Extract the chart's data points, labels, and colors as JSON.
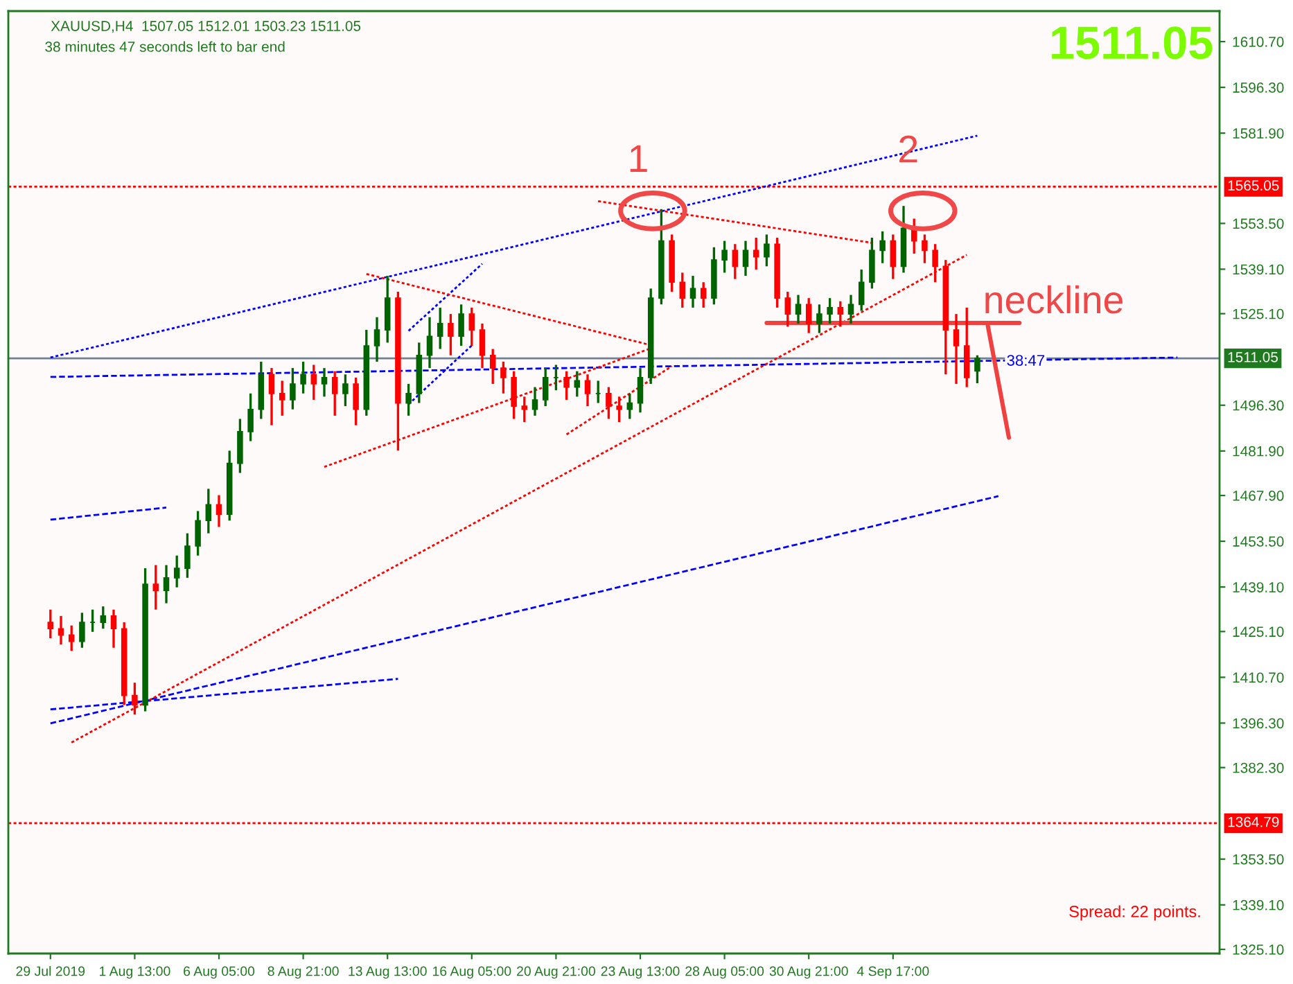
{
  "chart_data": {
    "type": "candlestick",
    "title": "XAUUSD,H4  1507.05 1512.01 1503.23 1511.05",
    "subtitle": "38 minutes 47 seconds left to bar end",
    "categories": [
      "29 Jul 2019",
      null,
      null,
      null,
      null,
      null,
      null,
      null,
      "1 Aug 13:00",
      null,
      null,
      null,
      null,
      null,
      null,
      null,
      "6 Aug 05:00",
      null,
      null,
      null,
      null,
      null,
      null,
      null,
      "8 Aug 21:00",
      null,
      null,
      null,
      null,
      null,
      null,
      null,
      "13 Aug 13:00",
      null,
      null,
      null,
      null,
      null,
      null,
      null,
      "16 Aug 05:00",
      null,
      null,
      null,
      null,
      null,
      null,
      null,
      "20 Aug 21:00",
      null,
      null,
      null,
      null,
      null,
      null,
      null,
      "23 Aug 13:00",
      null,
      null,
      null,
      null,
      null,
      null,
      null,
      "28 Aug 05:00",
      null,
      null,
      null,
      null,
      null,
      null,
      null,
      "30 Aug 21:00",
      null,
      null,
      null,
      null,
      null,
      null,
      null,
      "4 Sep 17:00",
      null,
      null,
      null,
      null,
      null,
      null,
      null,
      null,
      null,
      null,
      null,
      null,
      null,
      null,
      null,
      null,
      null,
      null,
      null,
      null,
      null,
      null,
      null,
      null,
      null,
      null,
      null
    ],
    "ohlc": [
      [
        1428,
        1432,
        1423,
        1426
      ],
      [
        1426,
        1430,
        1421,
        1424
      ],
      [
        1424,
        1427,
        1419,
        1422
      ],
      [
        1422,
        1431,
        1420,
        1428
      ],
      [
        1428,
        1432,
        1425,
        1428
      ],
      [
        1428,
        1433,
        1426,
        1430
      ],
      [
        1430,
        1432,
        1420,
        1426
      ],
      [
        1426,
        1428,
        1402,
        1405
      ],
      [
        1405,
        1409,
        1399,
        1402
      ],
      [
        1402,
        1445,
        1400,
        1440
      ],
      [
        1440,
        1446,
        1432,
        1438
      ],
      [
        1438,
        1446,
        1434,
        1442
      ],
      [
        1442,
        1449,
        1439,
        1445
      ],
      [
        1445,
        1456,
        1442,
        1452
      ],
      [
        1452,
        1463,
        1449,
        1460
      ],
      [
        1460,
        1470,
        1456,
        1465
      ],
      [
        1465,
        1468,
        1458,
        1462
      ],
      [
        1462,
        1482,
        1460,
        1478
      ],
      [
        1478,
        1492,
        1475,
        1488
      ],
      [
        1488,
        1500,
        1485,
        1495
      ],
      [
        1495,
        1510,
        1492,
        1506
      ],
      [
        1506,
        1508,
        1490,
        1500
      ],
      [
        1500,
        1504,
        1493,
        1498
      ],
      [
        1498,
        1508,
        1495,
        1503
      ],
      [
        1503,
        1510,
        1500,
        1506
      ],
      [
        1506,
        1509,
        1498,
        1503
      ],
      [
        1503,
        1508,
        1499,
        1505
      ],
      [
        1505,
        1507,
        1493,
        1500
      ],
      [
        1500,
        1506,
        1496,
        1503
      ],
      [
        1503,
        1505,
        1490,
        1495
      ],
      [
        1495,
        1520,
        1493,
        1515
      ],
      [
        1515,
        1524,
        1510,
        1520
      ],
      [
        1520,
        1537,
        1516,
        1530
      ],
      [
        1530,
        1532,
        1482,
        1497
      ],
      [
        1497,
        1503,
        1493,
        1500
      ],
      [
        1500,
        1516,
        1497,
        1512
      ],
      [
        1512,
        1524,
        1508,
        1518
      ],
      [
        1518,
        1527,
        1514,
        1522
      ],
      [
        1522,
        1525,
        1512,
        1518
      ],
      [
        1518,
        1528,
        1515,
        1525
      ],
      [
        1525,
        1527,
        1515,
        1520
      ],
      [
        1520,
        1522,
        1508,
        1512
      ],
      [
        1512,
        1514,
        1503,
        1508
      ],
      [
        1508,
        1510,
        1500,
        1505
      ],
      [
        1505,
        1507,
        1492,
        1496
      ],
      [
        1496,
        1499,
        1491,
        1495
      ],
      [
        1495,
        1502,
        1493,
        1498
      ],
      [
        1498,
        1508,
        1496,
        1505
      ],
      [
        1505,
        1509,
        1501,
        1505
      ],
      [
        1505,
        1507,
        1498,
        1502
      ],
      [
        1502,
        1507,
        1499,
        1504
      ],
      [
        1504,
        1506,
        1496,
        1500
      ],
      [
        1500,
        1504,
        1497,
        1500
      ],
      [
        1500,
        1502,
        1492,
        1496
      ],
      [
        1496,
        1499,
        1491,
        1495
      ],
      [
        1495,
        1500,
        1492,
        1497
      ],
      [
        1497,
        1508,
        1494,
        1505
      ],
      [
        1505,
        1533,
        1503,
        1530
      ],
      [
        1530,
        1558,
        1528,
        1548
      ],
      [
        1548,
        1550,
        1532,
        1535
      ],
      [
        1535,
        1538,
        1527,
        1530
      ],
      [
        1530,
        1537,
        1527,
        1533
      ],
      [
        1533,
        1535,
        1527,
        1530
      ],
      [
        1530,
        1546,
        1528,
        1542
      ],
      [
        1542,
        1548,
        1538,
        1545
      ],
      [
        1545,
        1547,
        1536,
        1540
      ],
      [
        1540,
        1548,
        1537,
        1545
      ],
      [
        1545,
        1549,
        1539,
        1543
      ],
      [
        1543,
        1550,
        1540,
        1547
      ],
      [
        1547,
        1549,
        1527,
        1530
      ],
      [
        1530,
        1532,
        1521,
        1525
      ],
      [
        1525,
        1531,
        1522,
        1528
      ],
      [
        1528,
        1530,
        1519,
        1522
      ],
      [
        1522,
        1528,
        1519,
        1525
      ],
      [
        1525,
        1530,
        1522,
        1527
      ],
      [
        1527,
        1529,
        1521,
        1525
      ],
      [
        1525,
        1531,
        1522,
        1528
      ],
      [
        1528,
        1539,
        1526,
        1535
      ],
      [
        1535,
        1549,
        1533,
        1545
      ],
      [
        1545,
        1551,
        1541,
        1548
      ],
      [
        1548,
        1550,
        1536,
        1540
      ],
      [
        1540,
        1559,
        1538,
        1552
      ],
      [
        1552,
        1555,
        1544,
        1548
      ],
      [
        1548,
        1550,
        1541,
        1545
      ],
      [
        1545,
        1547,
        1535,
        1540
      ],
      [
        1540,
        1542,
        1506,
        1520
      ],
      [
        1520,
        1525,
        1503,
        1515
      ],
      [
        1515,
        1527,
        1502,
        1505
      ],
      [
        1507.05,
        1512.01,
        1503.23,
        1511.05
      ],
      null,
      null,
      null,
      null,
      null,
      null,
      null,
      null,
      null,
      null,
      null,
      null,
      null,
      null,
      null,
      null,
      null,
      null,
      null
    ],
    "colors": [
      "#ff0000",
      "#ff0000",
      "#ff0000",
      "#006400",
      "#006400",
      "#006400",
      "#ff0000",
      "#ff0000",
      "#ff0000",
      "#006400",
      "#ff0000",
      "#006400",
      "#006400",
      "#006400",
      "#006400",
      "#006400",
      "#ff0000",
      "#006400",
      "#006400",
      "#006400",
      "#006400",
      "#ff0000",
      "#ff0000",
      "#006400",
      "#006400",
      "#ff0000",
      "#006400",
      "#ff0000",
      "#006400",
      "#ff0000",
      "#006400",
      "#006400",
      "#006400",
      "#ff0000",
      "#006400",
      "#006400",
      "#006400",
      "#006400",
      "#ff0000",
      "#006400",
      "#ff0000",
      "#ff0000",
      "#ff0000",
      "#ff0000",
      "#ff0000",
      "#ff0000",
      "#006400",
      "#006400",
      "#006400",
      "#ff0000",
      "#006400",
      "#ff0000",
      "#006400",
      "#ff0000",
      "#ff0000",
      "#006400",
      "#006400",
      "#006400",
      "#006400",
      "#ff0000",
      "#ff0000",
      "#006400",
      "#ff0000",
      "#006400",
      "#006400",
      "#ff0000",
      "#006400",
      "#ff0000",
      "#006400",
      "#ff0000",
      "#ff0000",
      "#006400",
      "#ff0000",
      "#006400",
      "#006400",
      "#ff0000",
      "#006400",
      "#006400",
      "#006400",
      "#006400",
      "#ff0000",
      "#006400",
      "#ff0000",
      "#ff0000",
      "#ff0000",
      "#ff0000",
      "#ff0000",
      "#ff0000",
      "#006400",
      null,
      null,
      null,
      null,
      null,
      null,
      null,
      null,
      null,
      null,
      null,
      null,
      null,
      null,
      null,
      null,
      null,
      null,
      null
    ],
    "ylim": [
      1323.8,
      1620.3
    ],
    "yticks": [
      {
        "value": 1610.7,
        "label": "1610.70"
      },
      {
        "value": 1596.3,
        "label": "1596.30"
      },
      {
        "value": 1581.9,
        "label": "1581.90"
      },
      {
        "value": 1553.5,
        "label": "1553.50"
      },
      {
        "value": 1539.1,
        "label": "1539.10"
      },
      {
        "value": 1525.1,
        "label": "1525.10"
      },
      {
        "value": 1496.3,
        "label": "1496.30"
      },
      {
        "value": 1481.9,
        "label": "1481.90"
      },
      {
        "value": 1467.9,
        "label": "1467.90"
      },
      {
        "value": 1453.5,
        "label": "1453.50"
      },
      {
        "value": 1439.1,
        "label": "1439.10"
      },
      {
        "value": 1425.1,
        "label": "1425.10"
      },
      {
        "value": 1410.7,
        "label": "1410.70"
      },
      {
        "value": 1396.3,
        "label": "1396.30"
      },
      {
        "value": 1382.3,
        "label": "1382.30"
      },
      {
        "value": 1353.5,
        "label": "1353.50"
      },
      {
        "value": 1339.1,
        "label": "1339.10"
      },
      {
        "value": 1325.1,
        "label": "1325.10"
      }
    ],
    "series": [
      {
        "type": "line",
        "color": "#0000ff",
        "line_style": "dotted",
        "values": [
          1511.3,
          null,
          null,
          null,
          null,
          null,
          null,
          null,
          null,
          null,
          null,
          null,
          null,
          null,
          null,
          null,
          null,
          null,
          null,
          null,
          null,
          null,
          null,
          null,
          null,
          null,
          null,
          null,
          null,
          null,
          null,
          null,
          null,
          null,
          null,
          null,
          null,
          null,
          null,
          null,
          null,
          null,
          null,
          null,
          null,
          null,
          null,
          null,
          null,
          null,
          null,
          null,
          null,
          null,
          null,
          null,
          null,
          null,
          null,
          null,
          null,
          null,
          null,
          null,
          null,
          null,
          null,
          null,
          null,
          null,
          null,
          null,
          null,
          null,
          null,
          null,
          null,
          null,
          null,
          null,
          null,
          null,
          null,
          null,
          null,
          null,
          null,
          null,
          1581.1,
          null,
          null,
          null,
          null,
          null,
          null,
          null,
          null,
          null,
          null,
          null,
          null,
          null,
          null,
          null,
          null,
          null,
          null,
          null
        ]
      },
      {
        "type": "line",
        "color": "#0000ff",
        "line_style": "dashed",
        "values": [
          1400.6,
          null,
          null,
          null,
          null,
          null,
          null,
          null,
          null,
          null,
          null,
          null,
          null,
          null,
          null,
          null,
          null,
          null,
          null,
          null,
          null,
          null,
          null,
          null,
          null,
          null,
          null,
          null,
          null,
          null,
          null,
          null,
          null,
          1410.2,
          null,
          null,
          null,
          null,
          null,
          null,
          null,
          null,
          null,
          null,
          null,
          null,
          null,
          null,
          null,
          null,
          null,
          null,
          null,
          null,
          null,
          null,
          null,
          null,
          null,
          null,
          null,
          null,
          null,
          null,
          null,
          null,
          null,
          null,
          null,
          null,
          null,
          null,
          null,
          null,
          null,
          null,
          null,
          null,
          null,
          null,
          null,
          null,
          null,
          null,
          null,
          null,
          null,
          null,
          null,
          null,
          null,
          null,
          null,
          null,
          null,
          null,
          null,
          null,
          null,
          null,
          null,
          null,
          null,
          null,
          null,
          null,
          null,
          null
        ]
      },
      {
        "type": "line",
        "color": "#0000ff",
        "line_style": "dashed",
        "values": [
          1396.2,
          null,
          null,
          null,
          null,
          null,
          null,
          null,
          null,
          null,
          null,
          null,
          null,
          null,
          null,
          null,
          null,
          null,
          null,
          null,
          null,
          null,
          null,
          null,
          null,
          null,
          null,
          null,
          null,
          null,
          null,
          null,
          null,
          null,
          null,
          null,
          null,
          null,
          null,
          null,
          null,
          null,
          null,
          null,
          null,
          null,
          null,
          null,
          null,
          null,
          null,
          null,
          null,
          null,
          null,
          null,
          null,
          null,
          null,
          null,
          null,
          null,
          null,
          null,
          null,
          null,
          null,
          null,
          null,
          null,
          null,
          null,
          null,
          null,
          null,
          null,
          null,
          null,
          null,
          null,
          null,
          null,
          null,
          null,
          null,
          null,
          null,
          null,
          null,
          null,
          1467.7,
          null,
          null,
          null,
          null,
          null,
          null,
          null,
          null,
          null,
          null,
          null,
          null,
          null,
          null,
          null,
          null,
          null
        ]
      },
      {
        "type": "line",
        "color": "#0000ff",
        "line_style": "dashed",
        "values": [
          1505.2,
          null,
          null,
          null,
          null,
          null,
          null,
          null,
          null,
          null,
          null,
          null,
          null,
          null,
          null,
          null,
          null,
          null,
          null,
          null,
          null,
          null,
          null,
          null,
          null,
          null,
          null,
          null,
          null,
          null,
          null,
          null,
          null,
          null,
          null,
          null,
          null,
          null,
          null,
          null,
          null,
          null,
          null,
          null,
          null,
          null,
          null,
          null,
          null,
          null,
          null,
          null,
          null,
          null,
          null,
          null,
          null,
          null,
          null,
          null,
          null,
          null,
          null,
          null,
          null,
          null,
          null,
          null,
          null,
          null,
          null,
          null,
          null,
          null,
          null,
          null,
          null,
          null,
          null,
          null,
          null,
          null,
          null,
          null,
          null,
          null,
          null,
          null,
          null,
          null,
          null,
          null,
          null,
          null,
          null,
          null,
          null,
          null,
          null,
          null,
          null,
          null,
          null,
          null,
          null,
          null,
          null,
          1511.3
        ]
      },
      {
        "type": "line",
        "color": "#0000ff",
        "line_style": "dashed",
        "values": [
          1460.3,
          null,
          null,
          null,
          null,
          null,
          null,
          null,
          null,
          null,
          null,
          1464.1,
          null,
          null,
          null,
          null,
          null,
          null,
          null,
          null,
          null,
          null,
          null,
          null,
          null,
          null,
          null,
          null,
          null,
          null,
          null,
          null,
          null,
          null,
          null,
          null,
          null,
          null,
          null,
          null,
          null,
          null,
          null,
          null,
          null,
          null,
          null,
          null,
          null,
          null,
          null,
          null,
          null,
          null,
          null,
          null,
          null,
          null,
          null,
          null,
          null,
          null,
          null,
          null,
          null,
          null,
          null,
          null,
          null,
          null,
          null,
          null,
          null,
          null,
          null,
          null,
          null,
          null,
          null,
          null,
          null,
          null,
          null,
          null,
          null,
          null,
          null,
          null,
          null,
          null,
          null,
          null,
          null,
          null,
          null,
          null,
          null,
          null,
          null,
          null,
          null,
          null,
          null,
          null,
          null,
          null,
          null,
          null
        ]
      },
      {
        "type": "line",
        "color": "#0000ff",
        "line_style": "dotted",
        "values": [
          null,
          null,
          null,
          null,
          null,
          null,
          null,
          null,
          null,
          null,
          null,
          null,
          null,
          null,
          null,
          null,
          null,
          null,
          null,
          null,
          null,
          null,
          null,
          null,
          null,
          null,
          null,
          null,
          null,
          null,
          null,
          null,
          null,
          null,
          1519.7,
          null,
          null,
          null,
          null,
          null,
          null,
          1540.8,
          null,
          null,
          null,
          null,
          null,
          null,
          null,
          null,
          null,
          null,
          null,
          null,
          null,
          null,
          null,
          null,
          null,
          null,
          null,
          null,
          null,
          null,
          null,
          null,
          null,
          null,
          null,
          null,
          null,
          null,
          null,
          null,
          null,
          null,
          null,
          null,
          null,
          null,
          null,
          null,
          null,
          null,
          null,
          null,
          null,
          null,
          null,
          null,
          null,
          null,
          null,
          null,
          null,
          null,
          null,
          null,
          null,
          null,
          null,
          null,
          null,
          null,
          null,
          null,
          null,
          null
        ]
      },
      {
        "type": "line",
        "color": "#0000ff",
        "line_style": "dotted",
        "values": [
          null,
          null,
          null,
          null,
          null,
          null,
          null,
          null,
          null,
          null,
          null,
          null,
          null,
          null,
          null,
          null,
          null,
          null,
          null,
          null,
          null,
          null,
          null,
          null,
          null,
          null,
          null,
          null,
          null,
          null,
          null,
          null,
          null,
          null,
          1496.6,
          null,
          null,
          null,
          null,
          null,
          1515.1,
          null,
          null,
          null,
          null,
          null,
          null,
          null,
          null,
          null,
          null,
          null,
          null,
          null,
          null,
          null,
          null,
          null,
          null,
          null,
          null,
          null,
          null,
          null,
          null,
          null,
          null,
          null,
          null,
          null,
          null,
          null,
          null,
          null,
          null,
          null,
          null,
          null,
          null,
          null,
          null,
          null,
          null,
          null,
          null,
          null,
          null,
          null,
          null,
          null,
          null,
          null,
          null,
          null,
          null,
          null,
          null,
          null,
          null,
          null,
          null,
          null,
          null,
          null,
          null,
          null,
          null,
          null
        ]
      },
      {
        "type": "line",
        "color": "#ff0000",
        "line_style": "dotted",
        "values": [
          null,
          null,
          1390.2,
          null,
          null,
          null,
          null,
          null,
          null,
          null,
          null,
          null,
          null,
          null,
          null,
          null,
          null,
          null,
          null,
          null,
          null,
          null,
          null,
          null,
          null,
          null,
          null,
          null,
          null,
          null,
          null,
          null,
          null,
          null,
          null,
          null,
          null,
          null,
          null,
          null,
          null,
          null,
          null,
          null,
          null,
          null,
          null,
          null,
          null,
          null,
          null,
          null,
          null,
          null,
          null,
          null,
          null,
          null,
          null,
          null,
          null,
          null,
          null,
          null,
          null,
          null,
          null,
          null,
          null,
          null,
          null,
          null,
          null,
          null,
          null,
          null,
          null,
          null,
          null,
          null,
          null,
          null,
          null,
          null,
          null,
          null,
          null,
          1543.6,
          null,
          null,
          null,
          null,
          null,
          null,
          null,
          null,
          null,
          null,
          null,
          null,
          null,
          null,
          null,
          null,
          null,
          null,
          null,
          null
        ]
      },
      {
        "type": "line",
        "color": "#ff0000",
        "line_style": "dotted",
        "values": [
          null,
          null,
          null,
          null,
          null,
          null,
          null,
          null,
          null,
          null,
          null,
          null,
          null,
          null,
          null,
          null,
          null,
          null,
          null,
          null,
          null,
          null,
          null,
          null,
          null,
          null,
          1476.9,
          null,
          null,
          null,
          null,
          null,
          null,
          null,
          null,
          null,
          null,
          null,
          null,
          null,
          null,
          null,
          null,
          null,
          null,
          null,
          null,
          null,
          null,
          null,
          null,
          null,
          null,
          null,
          null,
          null,
          null,
          1514.2,
          null,
          null,
          null,
          null,
          null,
          null,
          null,
          null,
          null,
          null,
          null,
          null,
          null,
          null,
          null,
          null,
          null,
          null,
          null,
          null,
          null,
          null,
          null,
          null,
          null,
          null,
          null,
          null,
          null,
          null,
          null,
          null,
          null,
          null,
          null,
          null,
          null,
          null,
          null,
          null,
          null,
          null,
          null,
          null,
          null,
          null,
          null,
          null,
          null,
          null
        ]
      },
      {
        "type": "line",
        "color": "#ff0000",
        "line_style": "dotted",
        "values": [
          null,
          null,
          null,
          null,
          null,
          null,
          null,
          null,
          null,
          null,
          null,
          null,
          null,
          null,
          null,
          null,
          null,
          null,
          null,
          null,
          null,
          null,
          null,
          null,
          null,
          null,
          null,
          null,
          null,
          null,
          null,
          null,
          null,
          null,
          null,
          null,
          null,
          null,
          null,
          null,
          null,
          null,
          null,
          null,
          null,
          null,
          null,
          null,
          null,
          1487.1,
          null,
          null,
          null,
          null,
          null,
          null,
          null,
          null,
          null,
          1508.6,
          null,
          null,
          null,
          null,
          null,
          null,
          null,
          null,
          null,
          null,
          null,
          null,
          null,
          null,
          null,
          null,
          null,
          null,
          null,
          null,
          null,
          null,
          null,
          null,
          null,
          null,
          null,
          null,
          null,
          null,
          null,
          null,
          null,
          null,
          null,
          null,
          null,
          null,
          null,
          null,
          null,
          null,
          null,
          null,
          null,
          null,
          null,
          null
        ]
      },
      {
        "type": "line",
        "color": "#ff0000",
        "line_style": "dotted",
        "values": [
          null,
          null,
          null,
          null,
          null,
          null,
          null,
          null,
          null,
          null,
          null,
          null,
          null,
          null,
          null,
          null,
          null,
          null,
          null,
          null,
          null,
          null,
          null,
          null,
          null,
          null,
          null,
          null,
          null,
          null,
          1537.6,
          null,
          null,
          null,
          null,
          null,
          null,
          null,
          null,
          null,
          null,
          null,
          null,
          null,
          null,
          null,
          null,
          null,
          null,
          null,
          null,
          null,
          null,
          null,
          null,
          null,
          null,
          1515.2,
          null,
          null,
          null,
          null,
          null,
          null,
          null,
          null,
          null,
          null,
          null,
          null,
          null,
          null,
          null,
          null,
          null,
          null,
          null,
          null,
          null,
          null,
          null,
          null,
          null,
          null,
          null,
          null,
          null,
          null,
          null,
          null,
          null,
          null,
          null,
          null,
          null,
          null,
          null,
          null,
          null,
          null,
          null,
          null,
          null,
          null,
          null,
          null,
          null,
          null
        ]
      },
      {
        "type": "line",
        "color": "#ff0000",
        "line_style": "dotted",
        "values": [
          null,
          null,
          null,
          null,
          null,
          null,
          null,
          null,
          null,
          null,
          null,
          null,
          null,
          null,
          null,
          null,
          null,
          null,
          null,
          null,
          null,
          null,
          null,
          null,
          null,
          null,
          null,
          null,
          null,
          null,
          null,
          null,
          null,
          null,
          null,
          null,
          null,
          null,
          null,
          null,
          null,
          null,
          null,
          null,
          null,
          null,
          null,
          null,
          null,
          null,
          null,
          null,
          1560.5,
          null,
          null,
          null,
          null,
          null,
          null,
          null,
          null,
          null,
          null,
          null,
          null,
          null,
          null,
          null,
          null,
          null,
          null,
          null,
          null,
          null,
          null,
          null,
          null,
          null,
          1547.4,
          null,
          null,
          null,
          null,
          null,
          null,
          null,
          null,
          null,
          null,
          null,
          null,
          null,
          null,
          null,
          null,
          null,
          null,
          null,
          null,
          null,
          null,
          null,
          null,
          null,
          null,
          null,
          null,
          null
        ]
      },
      {
        "type": "line",
        "color": "#f04040",
        "line_style": "solid",
        "values": [
          null,
          null,
          null,
          null,
          null,
          null,
          null,
          null,
          null,
          null,
          null,
          null,
          null,
          null,
          null,
          null,
          null,
          null,
          null,
          null,
          null,
          null,
          null,
          null,
          null,
          null,
          null,
          null,
          null,
          null,
          null,
          null,
          null,
          null,
          null,
          null,
          null,
          null,
          null,
          null,
          null,
          null,
          null,
          null,
          null,
          null,
          null,
          null,
          null,
          null,
          null,
          null,
          null,
          null,
          null,
          null,
          null,
          null,
          null,
          null,
          null,
          null,
          null,
          null,
          null,
          null,
          null,
          null,
          1522.2,
          null,
          null,
          null,
          null,
          null,
          null,
          null,
          null,
          null,
          null,
          null,
          null,
          null,
          null,
          null,
          null,
          null,
          null,
          null,
          null,
          null,
          null,
          null,
          1522.2,
          null,
          null,
          null,
          null,
          null,
          null,
          null,
          null,
          null,
          null,
          null,
          null,
          null,
          null,
          null
        ]
      },
      {
        "type": "line",
        "color": "#f04040",
        "line_style": "solid",
        "values": [
          null,
          null,
          null,
          null,
          null,
          null,
          null,
          null,
          null,
          null,
          null,
          null,
          null,
          null,
          null,
          null,
          null,
          null,
          null,
          null,
          null,
          null,
          null,
          null,
          null,
          null,
          null,
          null,
          null,
          null,
          null,
          null,
          null,
          null,
          null,
          null,
          null,
          null,
          null,
          null,
          null,
          null,
          null,
          null,
          null,
          null,
          null,
          null,
          null,
          null,
          null,
          null,
          null,
          null,
          null,
          null,
          null,
          null,
          null,
          null,
          null,
          null,
          null,
          null,
          null,
          null,
          null,
          null,
          null,
          null,
          null,
          null,
          null,
          null,
          null,
          null,
          null,
          null,
          null,
          null,
          null,
          null,
          null,
          null,
          null,
          null,
          null,
          null,
          null,
          1521.3,
          1503.7,
          1486.1,
          null,
          null,
          null,
          null,
          null,
          null,
          null,
          null,
          null,
          null,
          null,
          null,
          null,
          null,
          null,
          null
        ]
      }
    ],
    "ref_lines": [
      {
        "axis": "y",
        "value": 1565.05,
        "label": "1565.05",
        "color": "#ff0000",
        "line_style": "dotted"
      },
      {
        "axis": "y",
        "value": 1364.79,
        "label": "1364.79",
        "color": "#ff0000",
        "line_style": "dotted"
      },
      {
        "axis": "y",
        "value": 1511.05,
        "label": "1511.05",
        "color": "#708090",
        "line_style": "solid"
      }
    ],
    "annotations": [
      "1",
      "2",
      "neckline",
      "38:47",
      "1511.05",
      "Spread: 22 points."
    ]
  }
}
